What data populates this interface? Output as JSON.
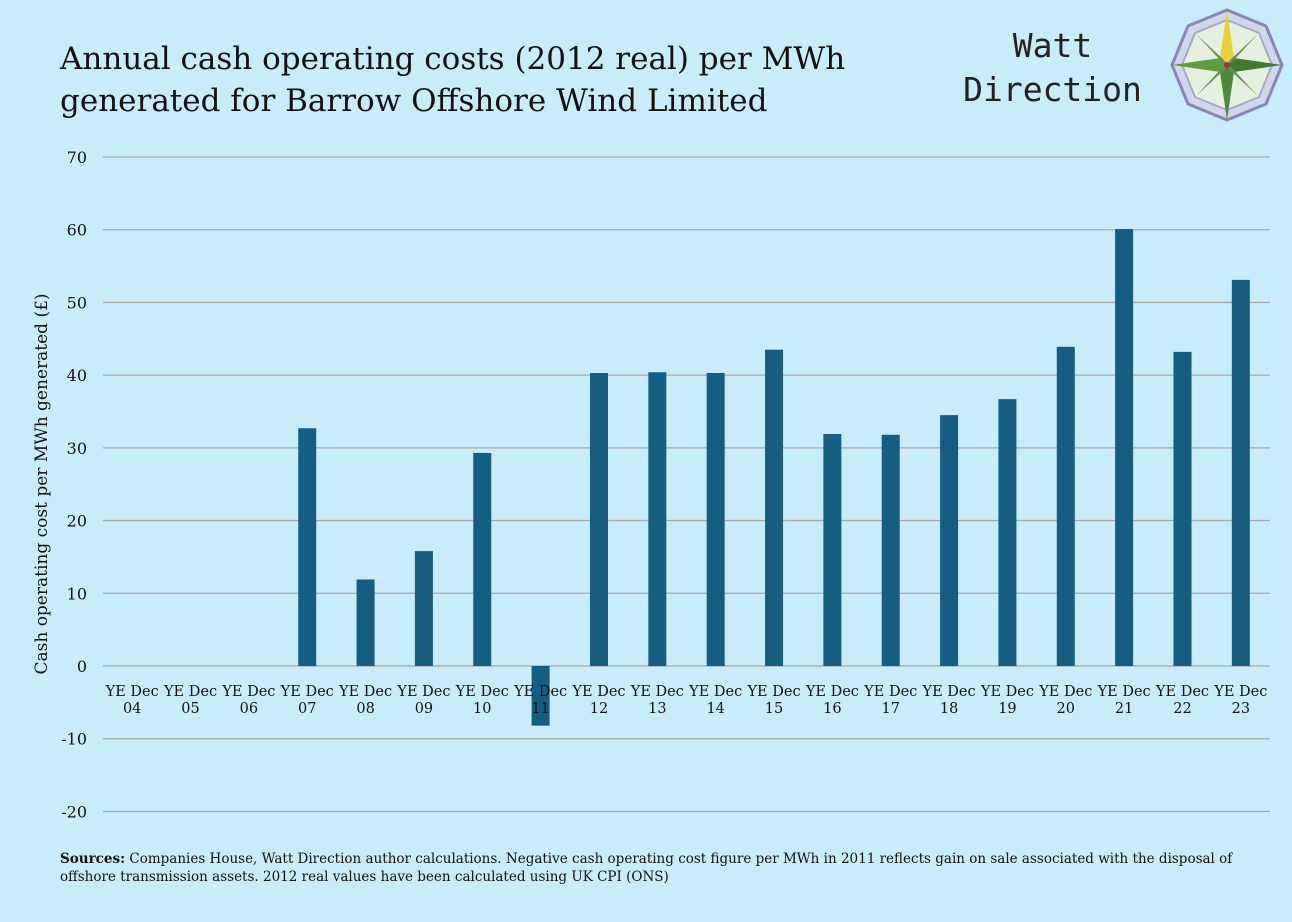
{
  "logo": {
    "line1": "Watt",
    "line2": "Direction"
  },
  "footer": {
    "label": "Sources:",
    "text": "Companies House, Watt Direction author calculations. Negative cash operating cost figure per MWh in  2011 reflects gain on sale associated with the disposal  of offshore transmission assets. 2012 real values have been calculated using UK CPI (ONS)"
  },
  "colors": {
    "bar": "#155e82",
    "background": "#c9ecfb",
    "grid": "#a9a9a9"
  },
  "chart_data": {
    "type": "bar",
    "title": "Annual cash operating costs (2012 real) per MWh generated for Barrow Offshore Wind Limited",
    "xlabel": "",
    "ylabel": "Cash operating cost per MWh generated (£)",
    "ylim": [
      -20,
      70
    ],
    "yticks": [
      -20,
      -10,
      0,
      10,
      20,
      30,
      40,
      50,
      60,
      70
    ],
    "grid": true,
    "categories": [
      [
        "YE Dec",
        "04"
      ],
      [
        "YE Dec",
        "05"
      ],
      [
        "YE Dec",
        "06"
      ],
      [
        "YE Dec",
        "07"
      ],
      [
        "YE Dec",
        "08"
      ],
      [
        "YE Dec",
        "09"
      ],
      [
        "YE Dec",
        "10"
      ],
      [
        "YE Dec",
        "11"
      ],
      [
        "YE Dec",
        "12"
      ],
      [
        "YE Dec",
        "13"
      ],
      [
        "YE Dec",
        "14"
      ],
      [
        "YE Dec",
        "15"
      ],
      [
        "YE Dec",
        "16"
      ],
      [
        "YE Dec",
        "17"
      ],
      [
        "YE Dec",
        "18"
      ],
      [
        "YE Dec",
        "19"
      ],
      [
        "YE Dec",
        "20"
      ],
      [
        "YE Dec",
        "21"
      ],
      [
        "YE Dec",
        "22"
      ],
      [
        "YE Dec",
        "23"
      ]
    ],
    "values": [
      null,
      null,
      null,
      32.7,
      11.9,
      15.8,
      29.3,
      -8.2,
      40.3,
      40.4,
      40.3,
      43.5,
      31.9,
      31.8,
      34.5,
      36.7,
      43.9,
      60.1,
      43.2,
      53.1
    ]
  }
}
